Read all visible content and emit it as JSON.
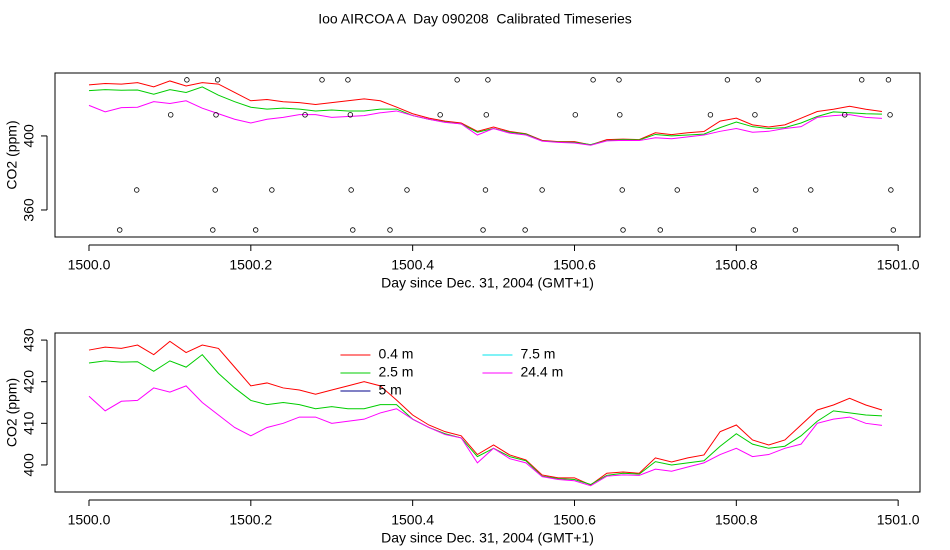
{
  "chart_data": [
    {
      "type": "line",
      "title": "Ioo AIRCOA A  Day 090208  Calibrated Timeseries",
      "xlabel": "Day since Dec. 31, 2004 (GMT+1)",
      "ylabel": "CO2 (ppm)",
      "xlim": [
        1499.958,
        1501.027
      ],
      "xticks": [
        {
          "value": 1500,
          "label": "1500.0"
        },
        1500.2,
        1500.4,
        1500.6,
        1500.8,
        {
          "value": 1501,
          "label": "1501.0"
        }
      ],
      "ylim": [
        345.4,
        434
      ],
      "yticks": [
        360,
        400
      ],
      "x": [
        1500,
        1500.02,
        1500.04,
        1500.06,
        1500.08,
        1500.1,
        1500.12,
        1500.14,
        1500.16,
        1500.18,
        1500.2,
        1500.22,
        1500.24,
        1500.26,
        1500.28,
        1500.3,
        1500.32,
        1500.34,
        1500.36,
        1500.38,
        1500.4,
        1500.42,
        1500.44,
        1500.46,
        1500.48,
        1500.5,
        1500.52,
        1500.54,
        1500.56,
        1500.58,
        1500.6,
        1500.62,
        1500.64,
        1500.66,
        1500.68,
        1500.7,
        1500.72,
        1500.74,
        1500.76,
        1500.78,
        1500.8,
        1500.82,
        1500.84,
        1500.86,
        1500.88,
        1500.9,
        1500.92,
        1500.94,
        1500.96,
        1500.98
      ],
      "series": [
        {
          "color": "#ff0000",
          "values": [
            427.6,
            428.3,
            428.0,
            428.8,
            426.5,
            429.7,
            427.0,
            428.8,
            428.0,
            423.5,
            419.0,
            419.7,
            418.5,
            418.0,
            417.0,
            418.0,
            419.0,
            420.0,
            419.0,
            415.6,
            412.0,
            409.6,
            408.0,
            407.0,
            402.5,
            404.8,
            402.4,
            401.2,
            397.6,
            396.9,
            396.9,
            395.2,
            398.0,
            398.3,
            398.0,
            401.7,
            400.7,
            401.7,
            402.4,
            408.0,
            409.6,
            406.0,
            404.8,
            406.0,
            409.6,
            413.2,
            414.4,
            416.0,
            414.4,
            413.2
          ]
        },
        {
          "color": "#00cd00",
          "values": [
            424.5,
            425,
            424.7,
            424.8,
            422.5,
            425,
            423.5,
            426.5,
            422,
            418.5,
            415.5,
            414.5,
            415,
            414.5,
            413.5,
            414,
            413.5,
            413.5,
            414.5,
            414.5,
            411,
            409,
            407.5,
            406.5,
            402,
            404,
            402,
            401,
            397.3,
            396.7,
            396.5,
            395.3,
            397.5,
            398,
            397.8,
            400.8,
            400,
            400.5,
            401,
            404.5,
            407.5,
            405,
            404,
            404.5,
            407,
            410.5,
            413,
            412.5,
            412,
            411.8
          ]
        },
        {
          "color": "#ff00ff",
          "values": [
            416.5,
            413,
            415.3,
            415.5,
            418.5,
            417.5,
            419,
            415,
            412,
            409,
            407,
            409,
            410,
            411.5,
            411.5,
            410,
            410.5,
            411,
            412.5,
            413.5,
            411,
            409,
            407.3,
            406.5,
            400.5,
            404,
            401.5,
            400.5,
            397.2,
            396.5,
            396.2,
            395,
            397.3,
            397.6,
            397.5,
            399,
            398.5,
            399.5,
            400.5,
            402.5,
            404,
            402,
            402.5,
            404,
            405,
            410,
            411,
            411.5,
            410,
            409.5
          ]
        }
      ],
      "points": {
        "x": [
          1500.121,
          1500.159,
          1500.288,
          1500.32,
          1500.455,
          1500.493,
          1500.623,
          1500.655,
          1500.789,
          1500.827,
          1500.955,
          1500.988,
          1500.101,
          1500.157,
          1500.267,
          1500.323,
          1500.434,
          1500.491,
          1500.601,
          1500.656,
          1500.768,
          1500.823,
          1500.934,
          1500.99,
          1500.059,
          1500.156,
          1500.226,
          1500.324,
          1500.393,
          1500.49,
          1500.56,
          1500.659,
          1500.727,
          1500.824,
          1500.892,
          1500.991,
          1500.038,
          1500.153,
          1500.206,
          1500.326,
          1500.372,
          1500.487,
          1500.539,
          1500.66,
          1500.706,
          1500.821,
          1500.873,
          1500.994
        ],
        "values": [
          430.3,
          430.3,
          430.3,
          430.3,
          430.3,
          430.3,
          430.3,
          430.3,
          430.3,
          430.3,
          430.3,
          430.3,
          411.4,
          411.4,
          411.4,
          411.4,
          411.4,
          411.4,
          411.4,
          411.4,
          411.4,
          411.4,
          411.4,
          411.4,
          370.8,
          370.8,
          370.8,
          370.8,
          370.8,
          370.8,
          370.8,
          370.8,
          370.8,
          370.8,
          370.8,
          370.8,
          349.2,
          349.2,
          349.2,
          349.2,
          349.2,
          349.2,
          349.2,
          349.2,
          349.2,
          349.2,
          349.2,
          349.2
        ],
        "color": "#000000"
      }
    },
    {
      "type": "line",
      "xlabel": "Day since Dec. 31, 2004 (GMT+1)",
      "ylabel": "CO2 (ppm)",
      "xlim": [
        1499.958,
        1501.027
      ],
      "xticks": [
        {
          "value": 1500,
          "label": "1500.0"
        },
        1500.2,
        1500.4,
        1500.6,
        1500.8,
        {
          "value": 1501,
          "label": "1501.0"
        }
      ],
      "ylim": [
        393.5,
        431.7
      ],
      "yticks": [
        400,
        410,
        420,
        430
      ],
      "legend": "top",
      "x": [
        1500,
        1500.02,
        1500.04,
        1500.06,
        1500.08,
        1500.1,
        1500.12,
        1500.14,
        1500.16,
        1500.18,
        1500.2,
        1500.22,
        1500.24,
        1500.26,
        1500.28,
        1500.3,
        1500.32,
        1500.34,
        1500.36,
        1500.38,
        1500.4,
        1500.42,
        1500.44,
        1500.46,
        1500.48,
        1500.5,
        1500.52,
        1500.54,
        1500.56,
        1500.58,
        1500.6,
        1500.62,
        1500.64,
        1500.66,
        1500.68,
        1500.7,
        1500.72,
        1500.74,
        1500.76,
        1500.78,
        1500.8,
        1500.82,
        1500.84,
        1500.86,
        1500.88,
        1500.9,
        1500.92,
        1500.94,
        1500.96,
        1500.98
      ],
      "series": [
        {
          "name": "0.4 m",
          "color": "#ff0000",
          "values": [
            427.6,
            428.3,
            428.0,
            428.8,
            426.5,
            429.7,
            427.0,
            428.8,
            428.0,
            423.5,
            419.0,
            419.7,
            418.5,
            418.0,
            417.0,
            418.0,
            419.0,
            420.0,
            419.0,
            415.6,
            412.0,
            409.6,
            408.0,
            407.0,
            402.5,
            404.8,
            402.4,
            401.2,
            397.6,
            396.9,
            396.9,
            395.2,
            398.0,
            398.3,
            398.0,
            401.7,
            400.7,
            401.7,
            402.4,
            408.0,
            409.6,
            406.0,
            404.8,
            406.0,
            409.6,
            413.2,
            414.4,
            416.0,
            414.4,
            413.2
          ]
        },
        {
          "name": "2.5 m",
          "color": "#00cd00",
          "values": [
            424.5,
            425,
            424.7,
            424.8,
            422.5,
            425,
            423.5,
            426.5,
            422,
            418.5,
            415.5,
            414.5,
            415,
            414.5,
            413.5,
            414,
            413.5,
            413.5,
            414.5,
            414.5,
            411,
            409,
            407.5,
            406.5,
            402,
            404,
            402,
            401,
            397.3,
            396.7,
            396.5,
            395.3,
            397.5,
            398,
            397.8,
            400.8,
            400,
            400.5,
            401,
            404.5,
            407.5,
            405,
            404,
            404.5,
            407,
            410.5,
            413,
            412.5,
            412,
            411.8
          ]
        },
        {
          "name": "5 m",
          "color": "#00008b",
          "values": [
            null,
            null,
            null,
            null,
            null,
            null,
            null,
            null,
            null,
            null,
            null,
            null,
            null,
            null,
            null,
            null,
            null,
            null,
            null,
            null,
            null,
            null,
            null,
            null,
            null,
            null,
            null,
            null,
            null,
            null,
            null,
            null,
            null,
            null,
            null,
            null,
            null,
            null,
            null,
            null,
            null,
            null,
            null,
            null,
            null,
            null,
            null,
            null,
            null,
            null
          ]
        },
        {
          "name": "7.5 m",
          "color": "#00e5ee",
          "values": [
            null,
            null,
            null,
            null,
            null,
            null,
            null,
            null,
            null,
            null,
            null,
            null,
            null,
            null,
            null,
            null,
            null,
            null,
            null,
            null,
            null,
            null,
            null,
            null,
            null,
            null,
            null,
            null,
            null,
            null,
            null,
            null,
            null,
            null,
            null,
            null,
            null,
            null,
            null,
            null,
            null,
            null,
            null,
            null,
            null,
            null,
            null,
            null,
            null,
            null
          ]
        },
        {
          "name": "24.4 m",
          "color": "#ff00ff",
          "values": [
            416.5,
            413,
            415.3,
            415.5,
            418.5,
            417.5,
            419,
            415,
            412,
            409,
            407,
            409,
            410,
            411.5,
            411.5,
            410,
            410.5,
            411,
            412.5,
            413.5,
            411,
            409,
            407.3,
            406.5,
            400.5,
            404,
            401.5,
            400.5,
            397.2,
            396.5,
            396.2,
            395,
            397.3,
            397.6,
            397.5,
            399,
            398.5,
            399.5,
            400.5,
            402.5,
            404,
            402,
            402.5,
            404,
            405,
            410,
            411,
            411.5,
            410,
            409.5
          ]
        }
      ]
    }
  ]
}
